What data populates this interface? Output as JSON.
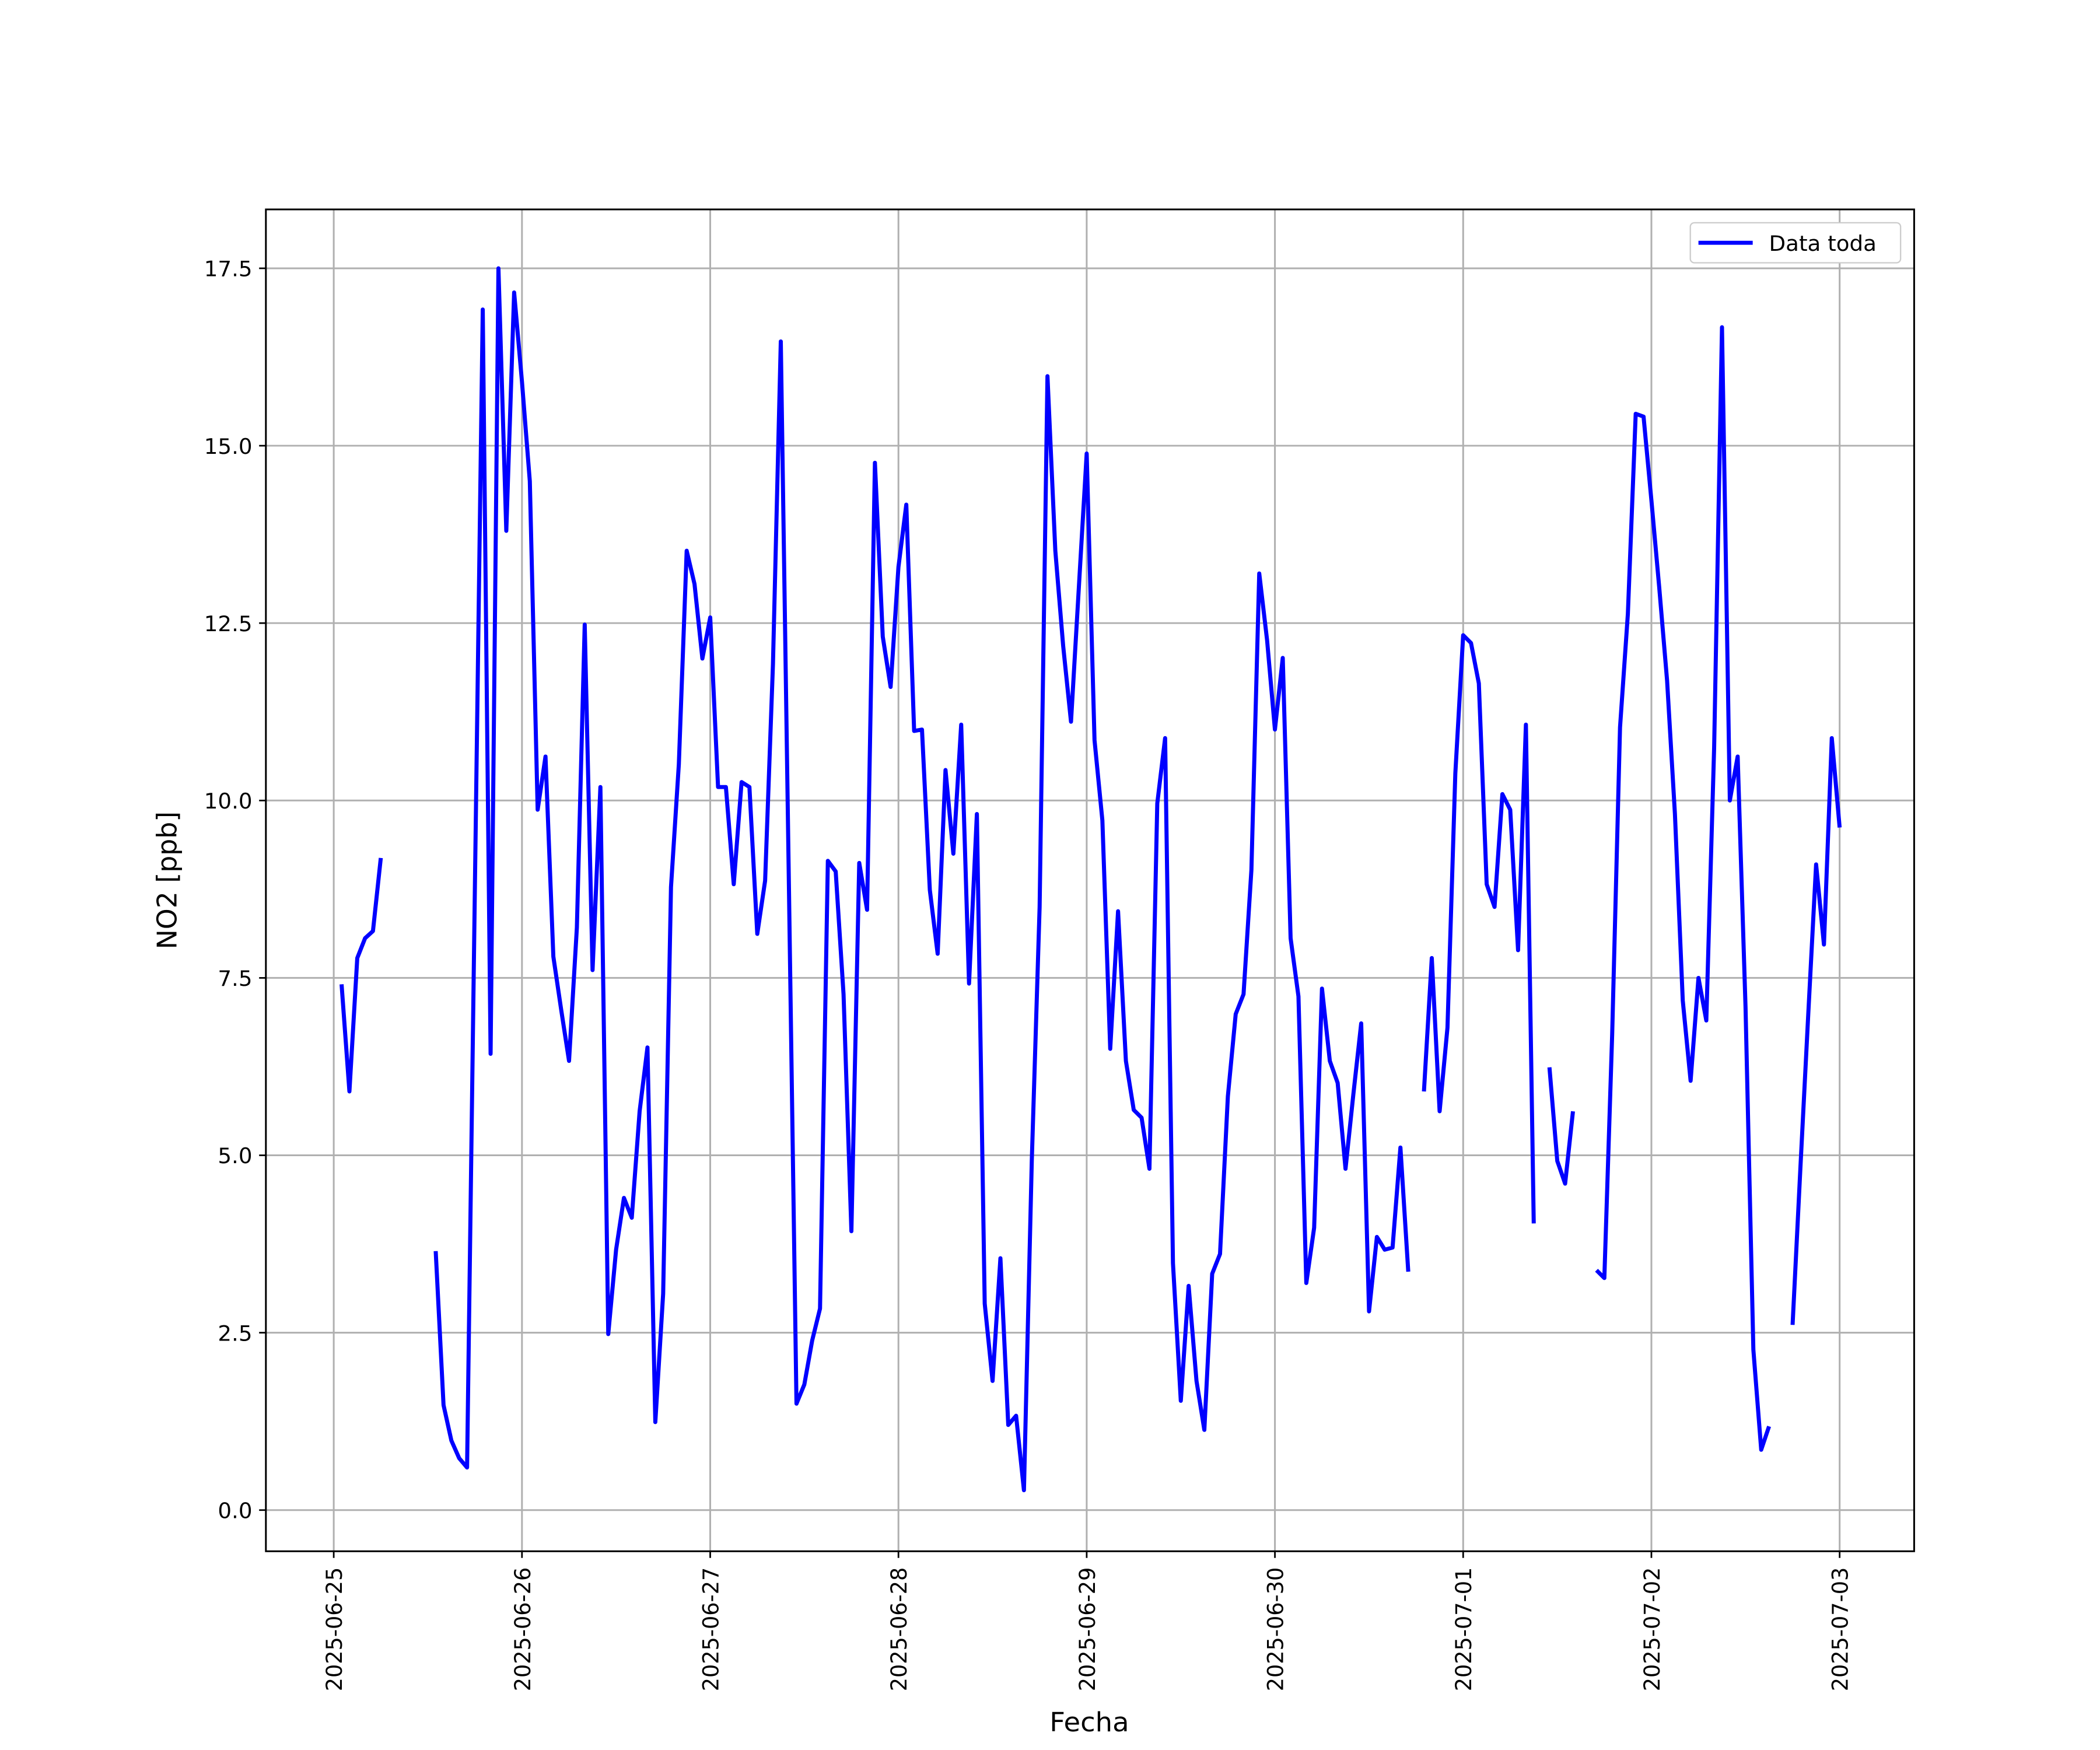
{
  "chart_data": {
    "type": "line",
    "x_label": "Fecha",
    "y_label": "NO2 [ppb]",
    "x": [
      "2025-06-25 01:00",
      "2025-06-25 02:00",
      "2025-06-25 03:00",
      "2025-06-25 04:00",
      "2025-06-25 05:00",
      "2025-06-25 06:00",
      "2025-06-25 07:00",
      "2025-06-25 08:00",
      "2025-06-25 09:00",
      "2025-06-25 10:00",
      "2025-06-25 11:00",
      "2025-06-25 12:00",
      "2025-06-25 13:00",
      "2025-06-25 14:00",
      "2025-06-25 15:00",
      "2025-06-25 16:00",
      "2025-06-25 17:00",
      "2025-06-25 18:00",
      "2025-06-25 19:00",
      "2025-06-25 20:00",
      "2025-06-25 21:00",
      "2025-06-25 22:00",
      "2025-06-25 23:00",
      "2025-06-26 00:00",
      "2025-06-26 01:00",
      "2025-06-26 02:00",
      "2025-06-26 03:00",
      "2025-06-26 04:00",
      "2025-06-26 05:00",
      "2025-06-26 06:00",
      "2025-06-26 07:00",
      "2025-06-26 08:00",
      "2025-06-26 09:00",
      "2025-06-26 10:00",
      "2025-06-26 11:00",
      "2025-06-26 12:00",
      "2025-06-26 13:00",
      "2025-06-26 14:00",
      "2025-06-26 15:00",
      "2025-06-26 16:00",
      "2025-06-26 17:00",
      "2025-06-26 18:00",
      "2025-06-26 19:00",
      "2025-06-26 20:00",
      "2025-06-26 21:00",
      "2025-06-26 22:00",
      "2025-06-26 23:00",
      "2025-06-27 00:00",
      "2025-06-27 01:00",
      "2025-06-27 02:00",
      "2025-06-27 03:00",
      "2025-06-27 04:00",
      "2025-06-27 05:00",
      "2025-06-27 06:00",
      "2025-06-27 07:00",
      "2025-06-27 08:00",
      "2025-06-27 09:00",
      "2025-06-27 10:00",
      "2025-06-27 11:00",
      "2025-06-27 12:00",
      "2025-06-27 13:00",
      "2025-06-27 14:00",
      "2025-06-27 15:00",
      "2025-06-27 16:00",
      "2025-06-27 17:00",
      "2025-06-27 18:00",
      "2025-06-27 19:00",
      "2025-06-27 20:00",
      "2025-06-27 21:00",
      "2025-06-27 22:00",
      "2025-06-27 23:00",
      "2025-06-28 00:00",
      "2025-06-28 01:00",
      "2025-06-28 02:00",
      "2025-06-28 03:00",
      "2025-06-28 04:00",
      "2025-06-28 05:00",
      "2025-06-28 06:00",
      "2025-06-28 07:00",
      "2025-06-28 08:00",
      "2025-06-28 09:00",
      "2025-06-28 10:00",
      "2025-06-28 11:00",
      "2025-06-28 12:00",
      "2025-06-28 13:00",
      "2025-06-28 14:00",
      "2025-06-28 15:00",
      "2025-06-28 16:00",
      "2025-06-28 17:00",
      "2025-06-28 18:00",
      "2025-06-28 19:00",
      "2025-06-28 20:00",
      "2025-06-28 21:00",
      "2025-06-28 22:00",
      "2025-06-28 23:00",
      "2025-06-29 00:00",
      "2025-06-29 01:00",
      "2025-06-29 02:00",
      "2025-06-29 03:00",
      "2025-06-29 04:00",
      "2025-06-29 05:00",
      "2025-06-29 06:00",
      "2025-06-29 07:00",
      "2025-06-29 08:00",
      "2025-06-29 09:00",
      "2025-06-29 10:00",
      "2025-06-29 11:00",
      "2025-06-29 12:00",
      "2025-06-29 13:00",
      "2025-06-29 14:00",
      "2025-06-29 15:00",
      "2025-06-29 16:00",
      "2025-06-29 17:00",
      "2025-06-29 18:00",
      "2025-06-29 19:00",
      "2025-06-29 20:00",
      "2025-06-29 21:00",
      "2025-06-29 22:00",
      "2025-06-29 23:00",
      "2025-06-30 00:00",
      "2025-06-30 01:00",
      "2025-06-30 02:00",
      "2025-06-30 03:00",
      "2025-06-30 04:00",
      "2025-06-30 05:00",
      "2025-06-30 06:00",
      "2025-06-30 07:00",
      "2025-06-30 08:00",
      "2025-06-30 09:00",
      "2025-06-30 10:00",
      "2025-06-30 11:00",
      "2025-06-30 12:00",
      "2025-06-30 13:00",
      "2025-06-30 14:00",
      "2025-06-30 15:00",
      "2025-06-30 16:00",
      "2025-06-30 17:00",
      "2025-06-30 18:00",
      "2025-06-30 19:00",
      "2025-06-30 20:00",
      "2025-06-30 21:00",
      "2025-06-30 22:00",
      "2025-06-30 23:00",
      "2025-07-01 00:00",
      "2025-07-01 01:00",
      "2025-07-01 02:00",
      "2025-07-01 03:00",
      "2025-07-01 04:00",
      "2025-07-01 05:00",
      "2025-07-01 06:00",
      "2025-07-01 07:00",
      "2025-07-01 08:00",
      "2025-07-01 09:00",
      "2025-07-01 10:00",
      "2025-07-01 11:00",
      "2025-07-01 12:00",
      "2025-07-01 13:00",
      "2025-07-01 14:00",
      "2025-07-01 15:00",
      "2025-07-01 16:00",
      "2025-07-01 17:00",
      "2025-07-01 18:00",
      "2025-07-01 19:00",
      "2025-07-01 20:00",
      "2025-07-01 21:00",
      "2025-07-01 22:00",
      "2025-07-01 23:00",
      "2025-07-02 00:00",
      "2025-07-02 01:00",
      "2025-07-02 02:00",
      "2025-07-02 03:00",
      "2025-07-02 04:00",
      "2025-07-02 05:00",
      "2025-07-02 06:00",
      "2025-07-02 07:00",
      "2025-07-02 08:00",
      "2025-07-02 09:00",
      "2025-07-02 10:00",
      "2025-07-02 11:00",
      "2025-07-02 12:00",
      "2025-07-02 13:00",
      "2025-07-02 14:00",
      "2025-07-02 15:00",
      "2025-07-02 16:00",
      "2025-07-02 17:00",
      "2025-07-02 18:00",
      "2025-07-02 19:00",
      "2025-07-02 20:00",
      "2025-07-02 21:00",
      "2025-07-02 22:00",
      "2025-07-02 23:00",
      "2025-07-03 00:00"
    ],
    "series": [
      {
        "name": "Data toda",
        "color": "#0000ff",
        "values": [
          7.41,
          5.9,
          7.78,
          8.06,
          8.16,
          9.19,
          null,
          null,
          null,
          null,
          null,
          null,
          3.65,
          1.48,
          0.98,
          0.73,
          0.6,
          8.8,
          16.92,
          6.43,
          17.5,
          13.8,
          17.16,
          15.9,
          14.5,
          9.87,
          10.62,
          7.8,
          7.05,
          6.33,
          8.21,
          12.48,
          7.61,
          10.19,
          2.48,
          3.67,
          4.4,
          4.12,
          5.62,
          6.52,
          1.24,
          3.05,
          8.78,
          10.51,
          13.52,
          13.05,
          12.0,
          12.58,
          10.19,
          10.19,
          8.82,
          10.26,
          10.19,
          8.12,
          8.87,
          11.92,
          16.47,
          9.06,
          1.5,
          1.77,
          2.39,
          2.84,
          9.15,
          9.0,
          7.27,
          3.93,
          9.12,
          8.46,
          14.76,
          12.31,
          11.6,
          13.29,
          14.17,
          10.98,
          11.0,
          8.74,
          7.84,
          10.43,
          9.25,
          11.07,
          7.42,
          9.81,
          2.91,
          1.82,
          3.55,
          1.2,
          1.33,
          0.28,
          4.92,
          8.5,
          15.98,
          13.52,
          12.18,
          11.11,
          13.0,
          14.89,
          10.85,
          9.72,
          6.5,
          8.44,
          6.33,
          5.64,
          5.53,
          4.81,
          9.96,
          10.88,
          3.48,
          1.54,
          3.16,
          1.82,
          1.13,
          3.33,
          3.61,
          5.83,
          6.99,
          7.27,
          9.02,
          13.2,
          12.26,
          11.0,
          12.01,
          8.06,
          7.24,
          3.2,
          3.98,
          7.35,
          6.33,
          6.02,
          4.81,
          5.86,
          6.86,
          2.8,
          3.85,
          3.67,
          3.7,
          5.11,
          3.36,
          null,
          5.9,
          7.78,
          5.62,
          6.8,
          10.38,
          12.33,
          12.22,
          11.65,
          8.82,
          8.5,
          10.09,
          9.87,
          7.89,
          11.07,
          4.04,
          null,
          6.24,
          4.92,
          4.6,
          5.62,
          null,
          null,
          3.38,
          3.27,
          6.71,
          11.03,
          12.63,
          15.45,
          15.41,
          14.23,
          13.0,
          11.69,
          9.81,
          7.18,
          6.05,
          7.5,
          6.9,
          10.75,
          16.67,
          10.0,
          10.62,
          7.09,
          2.26,
          0.85,
          1.18,
          null,
          null,
          2.61,
          4.83,
          6.99,
          9.1,
          7.97,
          10.88,
          9.62
        ]
      }
    ],
    "xlim": [
      "2025-06-24 15:21",
      "2025-07-03 09:30"
    ],
    "xticks": [
      "2025-06-25",
      "2025-06-26",
      "2025-06-27",
      "2025-06-28",
      "2025-06-29",
      "2025-06-30",
      "2025-07-01",
      "2025-07-02",
      "2025-07-03"
    ],
    "ylim": [
      -0.58,
      18.33
    ],
    "yticks": [
      {
        "value": 0,
        "label": "0.0"
      },
      2.5,
      {
        "value": 5,
        "label": "5.0"
      },
      7.5,
      {
        "value": 10,
        "label": "10.0"
      },
      12.5,
      {
        "value": 15,
        "label": "15.0"
      },
      17.5
    ],
    "grid": true,
    "legend": "upper right"
  }
}
